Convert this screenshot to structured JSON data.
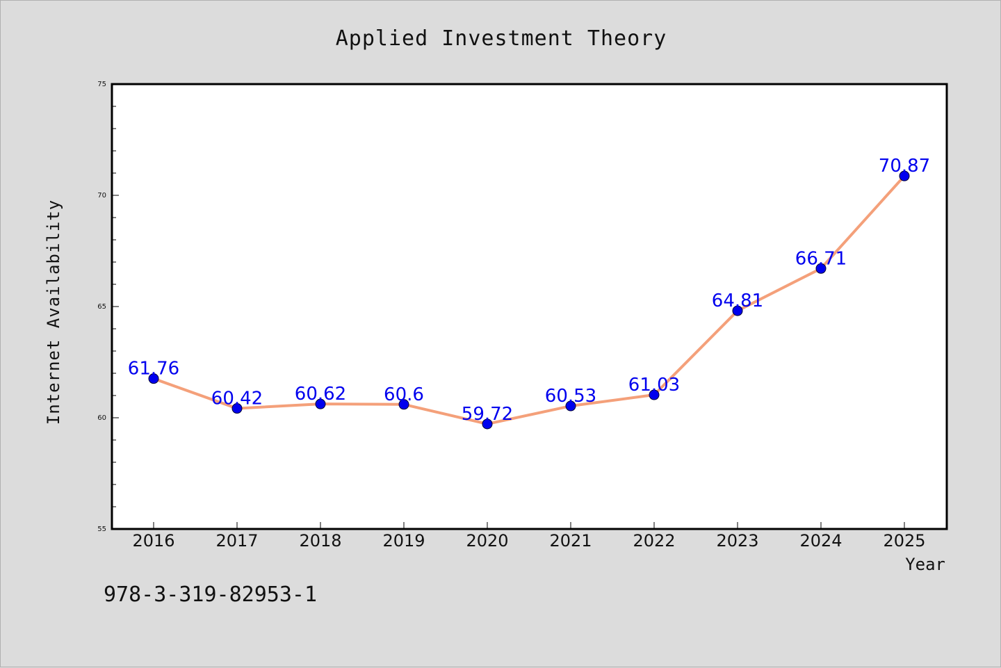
{
  "chart_data": {
    "type": "line",
    "title": "Applied Investment Theory",
    "xlabel": "Year",
    "ylabel": "Internet Availability",
    "categories": [
      "2016",
      "2017",
      "2018",
      "2019",
      "2020",
      "2021",
      "2022",
      "2023",
      "2024",
      "2025"
    ],
    "values": [
      61.76,
      60.42,
      60.62,
      60.6,
      59.72,
      60.53,
      61.03,
      64.81,
      66.71,
      70.87
    ],
    "data_labels": [
      "61.76",
      "60.42",
      "60.62",
      "60.6",
      "59.72",
      "60.53",
      "61.03",
      "64.81",
      "66.71",
      "70.87"
    ],
    "ylim": [
      55,
      75
    ],
    "y_ticks": [
      "55",
      "60",
      "65",
      "70",
      "75"
    ],
    "grid": false,
    "line_color": "#f4a07a",
    "marker_color": "#0000ee",
    "label_color": "#0000ee"
  },
  "footer": {
    "isbn": "978-3-319-82953-1"
  }
}
